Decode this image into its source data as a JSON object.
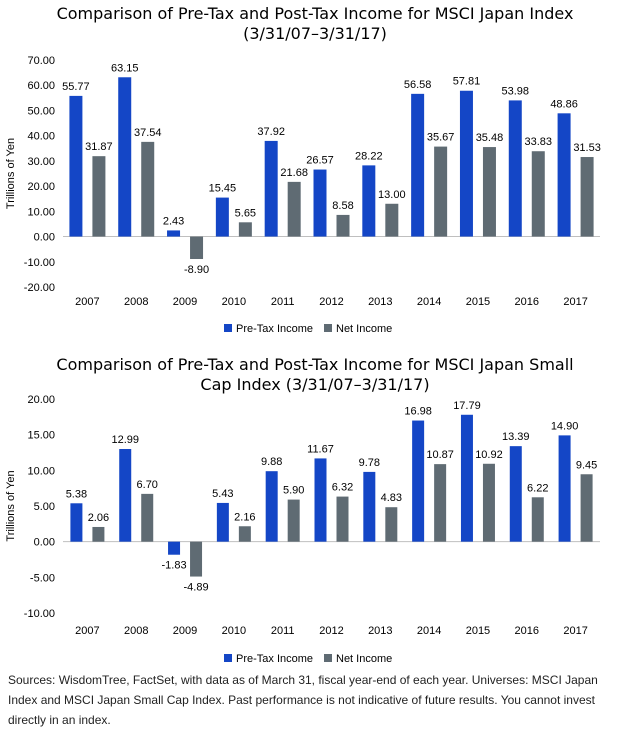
{
  "colors": {
    "pretax": "#1446c6",
    "net": "#5f6b73",
    "gridline": "#d9d9d9"
  },
  "chart_data": [
    {
      "type": "bar",
      "title_line1": "Comparison of Pre-Tax and Post-Tax Income for MSCI Japan Index",
      "title_line2": "(3/31/07–3/31/17)",
      "ylabel": "Trillions of Yen",
      "ylim": [
        -20,
        70
      ],
      "yticks": [
        "70.00",
        "60.00",
        "50.00",
        "40.00",
        "30.00",
        "20.00",
        "10.00",
        "0.00",
        "-10.00",
        "-20.00"
      ],
      "categories": [
        "2007",
        "2008",
        "2009",
        "2010",
        "2011",
        "2012",
        "2013",
        "2014",
        "2015",
        "2016",
        "2017"
      ],
      "series": [
        {
          "name": "Pre-Tax Income",
          "values": [
            55.77,
            63.15,
            2.43,
            15.45,
            37.92,
            26.57,
            28.22,
            56.58,
            57.81,
            53.98,
            48.86
          ],
          "labels": [
            "55.77",
            "63.15",
            "2.43",
            "15.45",
            "37.92",
            "26.57",
            "28.22",
            "56.58",
            "57.81",
            "53.98",
            "48.86"
          ]
        },
        {
          "name": "Net Income",
          "values": [
            31.87,
            37.54,
            -8.9,
            5.65,
            21.68,
            8.58,
            13.0,
            35.67,
            35.48,
            33.83,
            31.53
          ],
          "labels": [
            "31.87",
            "37.54",
            "-8.90",
            "5.65",
            "21.68",
            "8.58",
            "13.00",
            "35.67",
            "35.48",
            "33.83",
            "31.53"
          ]
        }
      ],
      "legend": "bottom",
      "grid": false
    },
    {
      "type": "bar",
      "title_line1": "Comparison of Pre-Tax and Post-Tax Income for MSCI Japan Small",
      "title_line2": "Cap Index (3/31/07–3/31/17)",
      "ylabel": "Trillions of Yen",
      "ylim": [
        -10,
        20
      ],
      "yticks": [
        "20.00",
        "15.00",
        "10.00",
        "5.00",
        "0.00",
        "-5.00",
        "-10.00"
      ],
      "categories": [
        "2007",
        "2008",
        "2009",
        "2010",
        "2011",
        "2012",
        "2013",
        "2014",
        "2015",
        "2016",
        "2017"
      ],
      "series": [
        {
          "name": "Pre-Tax Income",
          "values": [
            5.38,
            12.99,
            -1.83,
            5.43,
            9.88,
            11.67,
            9.78,
            16.98,
            17.79,
            13.39,
            14.9
          ],
          "labels": [
            "5.38",
            "12.99",
            "-1.83",
            "5.43",
            "9.88",
            "11.67",
            "9.78",
            "16.98",
            "17.79",
            "13.39",
            "14.90"
          ]
        },
        {
          "name": "Net Income",
          "values": [
            2.06,
            6.7,
            -4.89,
            2.16,
            5.9,
            6.32,
            4.83,
            10.87,
            10.92,
            6.22,
            9.45
          ],
          "labels": [
            "2.06",
            "6.70",
            "-4.89",
            "2.16",
            "5.90",
            "6.32",
            "4.83",
            "10.87",
            "10.92",
            "6.22",
            "9.45"
          ]
        }
      ],
      "legend": "bottom",
      "grid": false
    }
  ],
  "footnote": "Sources: WisdomTree, FactSet, with data as of March 31, fiscal year-end of each year. Universes: MSCI Japan Index and MSCI Japan Small Cap Index. Past performance is not indicative of future results. You cannot invest directly in an index."
}
